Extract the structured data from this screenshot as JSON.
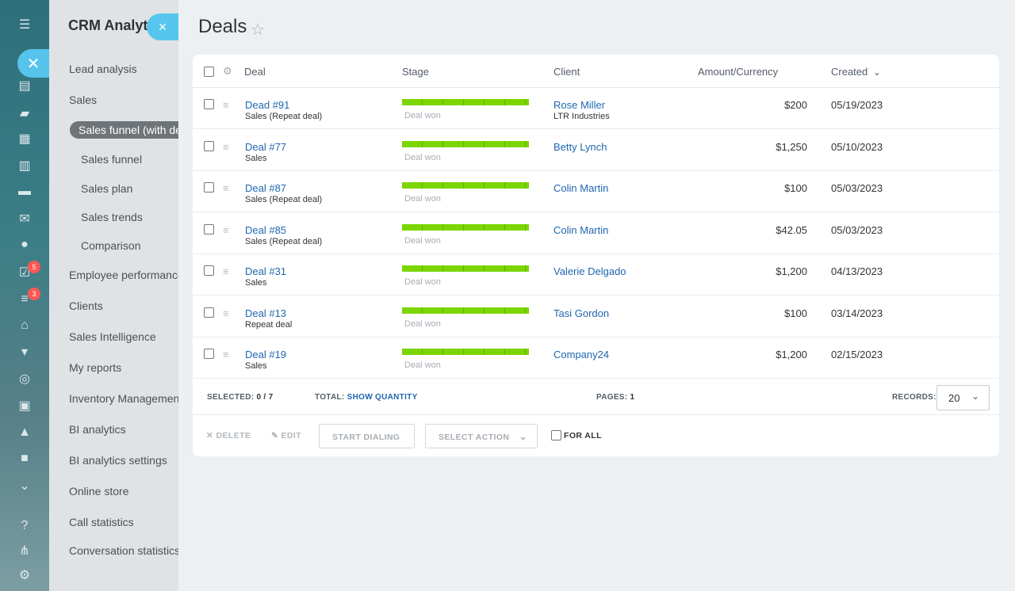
{
  "analytics": {
    "title": "CRM Analytics",
    "items": [
      {
        "label": "Lead analysis"
      },
      {
        "label": "Sales"
      },
      {
        "label": "Sales funnel (with deals)"
      },
      {
        "label": "Sales funnel"
      },
      {
        "label": "Sales plan"
      },
      {
        "label": "Sales trends"
      },
      {
        "label": "Comparison"
      },
      {
        "label": "Employee performance"
      },
      {
        "label": "Clients"
      },
      {
        "label": "Sales Intelligence"
      },
      {
        "label": "My reports"
      },
      {
        "label": "Inventory Management"
      },
      {
        "label": "BI analytics"
      },
      {
        "label": "BI analytics settings"
      },
      {
        "label": "Online store"
      },
      {
        "label": "Call statistics"
      },
      {
        "label": "Conversation statistics"
      }
    ]
  },
  "rail": {
    "badges": [
      "5",
      "3"
    ],
    "icons": [
      "menu-icon",
      "feed-icon",
      "chat-icon",
      "calendar-icon",
      "document-icon",
      "drive-icon",
      "mail-icon",
      "contacts-icon",
      "tasks-icon",
      "crm-funnel-icon",
      "building-icon",
      "cart-icon",
      "target-icon",
      "contact-card-icon",
      "robot-icon",
      "box-icon",
      "more-icon",
      "help-icon",
      "network-icon",
      "settings-icon"
    ]
  },
  "header": {
    "title": "Deals",
    "close": "×",
    "star": "☆"
  },
  "table": {
    "columns": {
      "deal": "Deal",
      "stage": "Stage",
      "client": "Client",
      "amount": "Amount/Currency",
      "created": "Created"
    },
    "sort_indicator": "⌄",
    "rows": [
      {
        "deal": "Dead #91",
        "deal_type": "Sales (Repeat deal)",
        "stage": "Deal won",
        "client": "Rose Miller",
        "client_company": "LTR Industries",
        "amount": "$200",
        "created": "05/19/2023"
      },
      {
        "deal": "Deal #77",
        "deal_type": "Sales",
        "stage": "Deal won",
        "client": "Betty Lynch",
        "client_company": "",
        "amount": "$1,250",
        "created": "05/10/2023"
      },
      {
        "deal": "Deal #87",
        "deal_type": "Sales (Repeat deal)",
        "stage": "Deal won",
        "client": "Colin Martin",
        "client_company": "",
        "amount": "$100",
        "created": "05/03/2023"
      },
      {
        "deal": "Deal #85",
        "deal_type": "Sales (Repeat deal)",
        "stage": "Deal won",
        "client": "Colin Martin",
        "client_company": "",
        "amount": "$42.05",
        "created": "05/03/2023"
      },
      {
        "deal": "Deal #31",
        "deal_type": "Sales",
        "stage": "Deal won",
        "client": "Valerie Delgado",
        "client_company": "",
        "amount": "$1,200",
        "created": "04/13/2023"
      },
      {
        "deal": "Deal #13",
        "deal_type": "Repeat deal",
        "stage": "Deal won",
        "client": "Tasi Gordon",
        "client_company": "",
        "amount": "$100",
        "created": "03/14/2023"
      },
      {
        "deal": "Deal #19",
        "deal_type": "Sales",
        "stage": "Deal won",
        "client": "Company24",
        "client_company": "",
        "amount": "$1,200",
        "created": "02/15/2023"
      }
    ]
  },
  "footer": {
    "selected_label": "SELECTED:",
    "selected_value": "0 / 7",
    "total_label": "TOTAL:",
    "total_link": "SHOW QUANTITY",
    "pages_label": "PAGES:",
    "pages_value": "1",
    "records_label": "RECORDS:",
    "records_value": "20"
  },
  "actions": {
    "delete": "DELETE",
    "edit": "EDIT",
    "start_dialing": "START DIALING",
    "select_action": "SELECT ACTION",
    "for_all": "FOR ALL"
  },
  "colors": {
    "accent": "#2067b0",
    "stage_won": "#7bd500",
    "close_button": "#56c6ee",
    "badge": "#ff5752"
  }
}
